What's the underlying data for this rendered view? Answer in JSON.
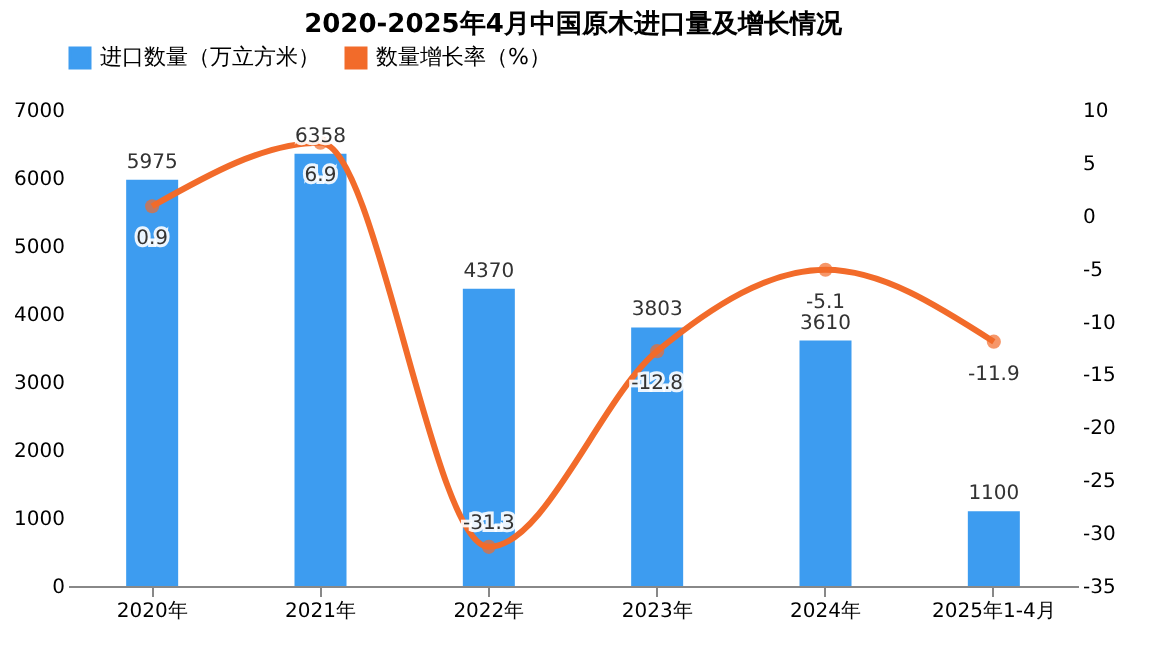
{
  "chart_data": {
    "type": "bar",
    "title": "2020-2025年4月中国原木进口量及增长情况",
    "categories": [
      "2020年",
      "2021年",
      "2022年",
      "2023年",
      "2024年",
      "2025年1-4月"
    ],
    "series": [
      {
        "name": "进口数量（万立方米）",
        "color": "#3d9cf0",
        "values": [
          5975,
          6358,
          4370,
          3803,
          3610,
          1100
        ]
      },
      {
        "name": "数量增长率（%）",
        "type": "line",
        "axis": "y2",
        "color": "#f26b2a",
        "values": [
          0.9,
          6.9,
          -31.3,
          -12.8,
          -5.1,
          -11.9
        ]
      }
    ],
    "ylim": [
      0,
      7000
    ],
    "yticks": [
      0,
      1000,
      2000,
      3000,
      4000,
      5000,
      6000,
      7000
    ],
    "y2lim": [
      -35,
      10
    ],
    "y2ticks": [
      -35,
      -30,
      -25,
      -20,
      -15,
      -10,
      -5,
      0,
      5,
      10
    ],
    "data_labels": true,
    "legend": "top",
    "marker": "circle",
    "grid": false
  }
}
